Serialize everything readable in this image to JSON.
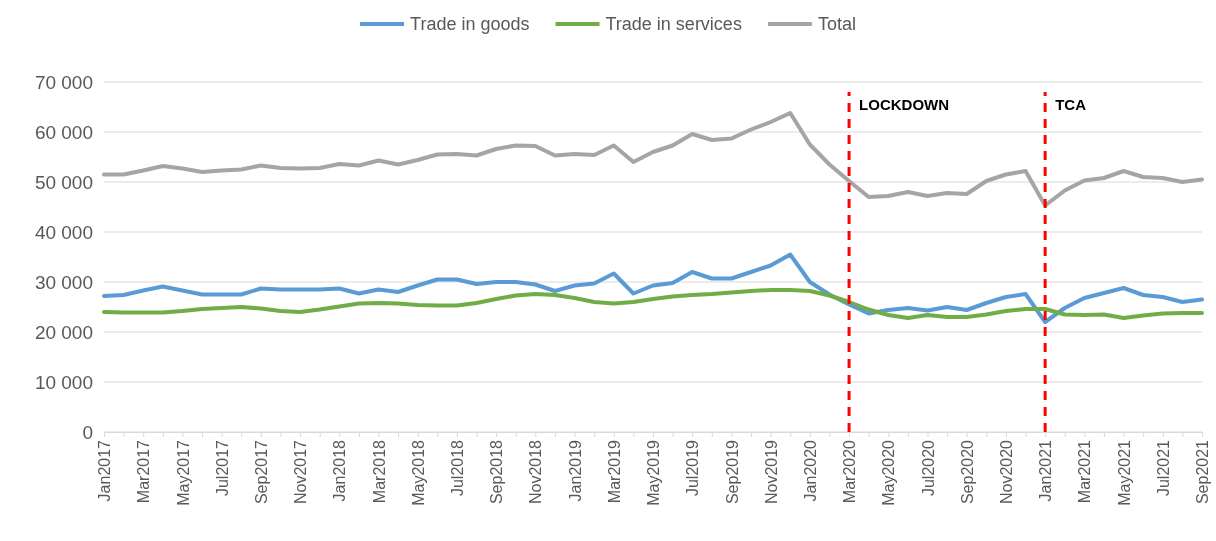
{
  "chart_data": {
    "type": "line",
    "categories": [
      "Jan2017",
      null,
      "Mar2017",
      null,
      "May2017",
      null,
      "Jul2017",
      null,
      "Sep2017",
      null,
      "Nov2017",
      null,
      "Jan2018",
      null,
      "Mar2018",
      null,
      "May2018",
      null,
      "Jul2018",
      null,
      "Sep2018",
      null,
      "Nov2018",
      null,
      "Jan2019",
      null,
      "Mar2019",
      null,
      "May2019",
      null,
      "Jul2019",
      null,
      "Sep2019",
      null,
      "Nov2019",
      null,
      "Jan2020",
      null,
      "Mar2020",
      null,
      "May2020",
      null,
      "Jul2020",
      null,
      "Sep2020",
      null,
      "Nov2020",
      null,
      "Jan2021",
      null,
      "Mar2021",
      null,
      "May2021",
      null,
      "Jul2021",
      null,
      "Sep2021"
    ],
    "series": [
      {
        "name": "Trade in goods",
        "color": "#5b9bd5",
        "values": [
          27200,
          27400,
          28300,
          29100,
          28300,
          27500,
          27500,
          27500,
          28700,
          28500,
          28500,
          28500,
          28700,
          27700,
          28500,
          28000,
          29300,
          30500,
          30500,
          29600,
          30000,
          30000,
          29500,
          28200,
          29300,
          29700,
          31700,
          27700,
          29300,
          29800,
          32000,
          30700,
          30700,
          32000,
          33300,
          35500,
          30000,
          27500,
          25500,
          23700,
          24400,
          24800,
          24300,
          25000,
          24400,
          25800,
          27000,
          27600,
          22000,
          24800,
          26800,
          27800,
          28800,
          27400,
          27000,
          26000,
          26500
        ]
      },
      {
        "name": "Trade in services",
        "color": "#70ad47",
        "values": [
          24000,
          23900,
          23900,
          23900,
          24200,
          24600,
          24800,
          25000,
          24700,
          24200,
          24000,
          24500,
          25100,
          25700,
          25800,
          25700,
          25400,
          25300,
          25300,
          25800,
          26600,
          27300,
          27600,
          27400,
          26800,
          26000,
          25700,
          26000,
          26600,
          27100,
          27400,
          27600,
          27900,
          28200,
          28400,
          28400,
          28200,
          27300,
          26000,
          24500,
          23400,
          22800,
          23400,
          23000,
          23000,
          23500,
          24200,
          24600,
          24600,
          23500,
          23400,
          23500,
          22800,
          23300,
          23700,
          23800,
          23800
        ]
      },
      {
        "name": "Total",
        "color": "#a5a5a5",
        "values": [
          51500,
          51500,
          52300,
          53200,
          52700,
          52000,
          52300,
          52500,
          53300,
          52800,
          52700,
          52800,
          53600,
          53300,
          54300,
          53500,
          54400,
          55500,
          55600,
          55300,
          56600,
          57300,
          57200,
          55300,
          55600,
          55400,
          57300,
          54000,
          56000,
          57300,
          59600,
          58400,
          58700,
          60500,
          62000,
          63800,
          57500,
          53500,
          50200,
          47000,
          47200,
          48000,
          47200,
          47800,
          47600,
          50200,
          51500,
          52200,
          45300,
          48300,
          50300,
          50800,
          52200,
          51000,
          50800,
          50000,
          50500
        ]
      }
    ],
    "ylim": [
      0,
      70000
    ],
    "yticks": [
      0,
      {
        "value": 10000,
        "label": "10 000"
      },
      {
        "value": 20000,
        "label": "20 000"
      },
      {
        "value": 30000,
        "label": "30 000"
      },
      {
        "value": 40000,
        "label": "40 000"
      },
      {
        "value": 50000,
        "label": "50 000"
      },
      {
        "value": 60000,
        "label": "60 000"
      },
      {
        "value": 70000,
        "label": "70 000"
      }
    ],
    "ref_lines": [
      {
        "axis": "x",
        "value": "Mar2020",
        "label": "LOCKDOWN",
        "color": "#ff0000",
        "line_style": "dashed"
      },
      {
        "axis": "x",
        "value": "Jan2021",
        "label": "TCA",
        "color": "#ff0000",
        "line_style": "dashed"
      }
    ],
    "grid": "y",
    "legend": "top",
    "marker": "none",
    "line_style": "solid"
  }
}
